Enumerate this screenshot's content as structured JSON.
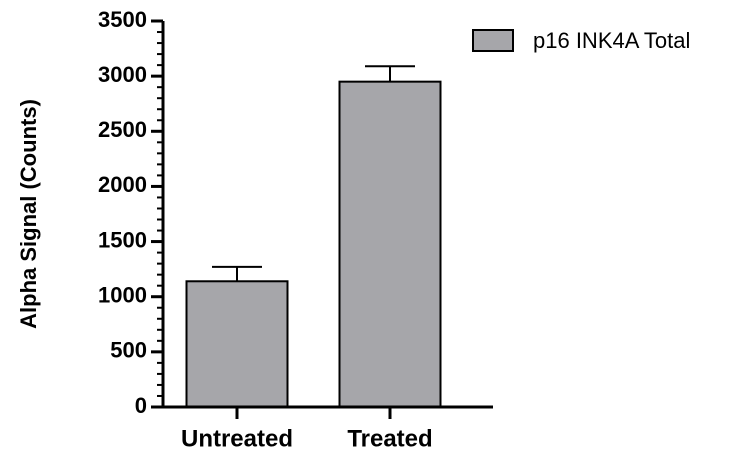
{
  "chart_data": {
    "type": "bar",
    "categories": [
      "Untreated",
      "Treated"
    ],
    "series": [
      {
        "name": "p16 INK4A Total",
        "values": [
          1140,
          2950
        ],
        "errors": [
          130,
          140
        ],
        "color": "#a6a6aa"
      }
    ],
    "xlabel": "",
    "ylabel": "Alpha Signal (Counts)",
    "ylim": [
      0,
      3500
    ],
    "yticks": [
      0,
      500,
      1000,
      1500,
      2000,
      2500,
      3000,
      3500
    ],
    "y_minor_step": 100,
    "grid": false,
    "legend_position": "top-right",
    "error_bars": "upper"
  }
}
